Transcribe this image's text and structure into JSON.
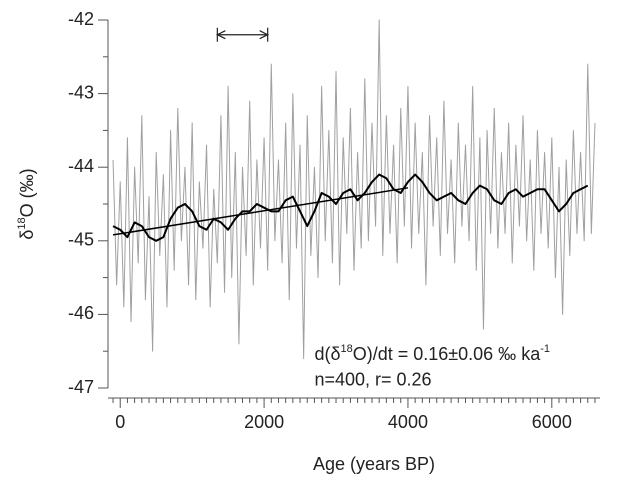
{
  "chart_data": {
    "type": "line",
    "x_label": "Age (years BP)",
    "y_label_parts": [
      {
        "text": "δ"
      },
      {
        "text": "18",
        "sup": true
      },
      {
        "text": "O (‰)"
      }
    ],
    "xlim": [
      -170,
      6670
    ],
    "ylim": [
      -47,
      -42
    ],
    "xticks": [
      0,
      2000,
      4000,
      6000
    ],
    "xminorticks": [
      -100,
      100,
      200,
      300,
      400,
      500,
      600,
      700,
      800,
      900,
      1000,
      1100,
      1200,
      1300,
      1400,
      1500,
      1600,
      1700,
      1800,
      1900,
      2100,
      2200,
      2300,
      2400,
      2500,
      2600,
      2700,
      2800,
      2900,
      3000,
      3100,
      3200,
      3300,
      3400,
      3500,
      3600,
      3700,
      3800,
      3900,
      4100,
      4200,
      4300,
      4400,
      4500,
      4600,
      4700,
      4800,
      4900,
      5000,
      5100,
      5200,
      5300,
      5400,
      5500,
      5600,
      5700,
      5800,
      5900,
      6100,
      6200,
      6300,
      6400,
      6500,
      6600
    ],
    "yticks": [
      -47,
      -46,
      -45,
      -44,
      -43,
      -42
    ],
    "yminorticks": [
      -46.5,
      -45.5,
      -44.5,
      -43.5,
      -42.5
    ],
    "series": [
      {
        "name": "raw",
        "color": "#a0a0a0",
        "width": 1,
        "x": [
          -100,
          -50,
          0,
          50,
          100,
          150,
          200,
          250,
          300,
          350,
          400,
          450,
          500,
          550,
          600,
          650,
          700,
          750,
          800,
          850,
          900,
          950,
          1000,
          1050,
          1100,
          1150,
          1200,
          1250,
          1300,
          1350,
          1400,
          1450,
          1500,
          1550,
          1600,
          1650,
          1700,
          1750,
          1800,
          1850,
          1900,
          1950,
          2000,
          2050,
          2100,
          2150,
          2200,
          2250,
          2300,
          2350,
          2400,
          2450,
          2500,
          2550,
          2600,
          2650,
          2700,
          2750,
          2800,
          2850,
          2900,
          2950,
          3000,
          3050,
          3100,
          3150,
          3200,
          3250,
          3300,
          3350,
          3400,
          3450,
          3500,
          3550,
          3600,
          3650,
          3700,
          3750,
          3800,
          3850,
          3900,
          3950,
          4000,
          4050,
          4100,
          4150,
          4200,
          4250,
          4300,
          4350,
          4400,
          4450,
          4500,
          4550,
          4600,
          4650,
          4700,
          4750,
          4800,
          4850,
          4900,
          4950,
          5000,
          5050,
          5100,
          5150,
          5200,
          5250,
          5300,
          5350,
          5400,
          5450,
          5500,
          5550,
          5600,
          5650,
          5700,
          5750,
          5800,
          5850,
          5900,
          5950,
          6000,
          6050,
          6100,
          6150,
          6200,
          6250,
          6300,
          6350,
          6400,
          6450,
          6500,
          6550,
          6600
        ],
        "values": [
          -43.9,
          -45.6,
          -44.2,
          -45.9,
          -43.6,
          -46.1,
          -44.0,
          -45.3,
          -43.3,
          -45.8,
          -44.4,
          -46.5,
          -43.8,
          -45.2,
          -44.1,
          -45.9,
          -43.5,
          -45.4,
          -43.2,
          -45.0,
          -44.0,
          -45.6,
          -43.4,
          -45.8,
          -44.2,
          -45.1,
          -43.7,
          -45.9,
          -44.3,
          -45.3,
          -43.3,
          -45.7,
          -42.9,
          -45.5,
          -43.8,
          -46.4,
          -44.0,
          -45.2,
          -43.1,
          -45.6,
          -43.9,
          -45.1,
          -43.6,
          -45.4,
          -42.6,
          -45.0,
          -43.9,
          -45.3,
          -43.4,
          -45.8,
          -43.0,
          -45.1,
          -43.7,
          -46.6,
          -43.3,
          -45.2,
          -44.0,
          -45.5,
          -42.9,
          -45.0,
          -43.5,
          -45.3,
          -42.7,
          -45.6,
          -43.6,
          -44.9,
          -43.2,
          -45.4,
          -43.8,
          -45.1,
          -42.8,
          -45.0,
          -43.4,
          -44.8,
          -42.0,
          -45.2,
          -43.3,
          -44.9,
          -43.7,
          -45.3,
          -43.2,
          -44.8,
          -42.9,
          -45.1,
          -43.4,
          -44.9,
          -43.8,
          -45.6,
          -43.3,
          -44.8,
          -43.6,
          -45.2,
          -43.1,
          -44.9,
          -43.9,
          -45.3,
          -43.4,
          -44.8,
          -43.7,
          -45.0,
          -42.9,
          -45.4,
          -43.6,
          -46.2,
          -43.5,
          -44.9,
          -43.2,
          -45.1,
          -43.8,
          -44.9,
          -43.4,
          -45.3,
          -43.7,
          -44.8,
          -43.3,
          -45.0,
          -43.9,
          -45.4,
          -43.5,
          -44.9,
          -43.8,
          -45.1,
          -43.6,
          -45.5,
          -44.0,
          -46.0,
          -43.9,
          -45.2,
          -43.5,
          -44.9,
          -43.8,
          -45.0,
          -42.6,
          -44.9,
          -43.4
        ]
      },
      {
        "name": "smoothed",
        "color": "#000000",
        "width": 2,
        "x": [
          -100,
          0,
          100,
          200,
          300,
          400,
          500,
          600,
          700,
          800,
          900,
          1000,
          1100,
          1200,
          1300,
          1400,
          1500,
          1600,
          1700,
          1800,
          1900,
          2000,
          2100,
          2200,
          2300,
          2400,
          2500,
          2600,
          2700,
          2800,
          2900,
          3000,
          3100,
          3200,
          3300,
          3400,
          3500,
          3600,
          3700,
          3800,
          3900,
          4000,
          4100,
          4200,
          4300,
          4400,
          4500,
          4600,
          4700,
          4800,
          4900,
          5000,
          5100,
          5200,
          5300,
          5400,
          5500,
          5600,
          5700,
          5800,
          5900,
          6000,
          6100,
          6200,
          6300,
          6400,
          6500
        ],
        "values": [
          -44.8,
          -44.85,
          -44.95,
          -44.75,
          -44.8,
          -44.95,
          -45.0,
          -44.95,
          -44.7,
          -44.55,
          -44.5,
          -44.6,
          -44.8,
          -44.85,
          -44.7,
          -44.75,
          -44.85,
          -44.7,
          -44.6,
          -44.6,
          -44.5,
          -44.55,
          -44.6,
          -44.6,
          -44.45,
          -44.4,
          -44.6,
          -44.8,
          -44.6,
          -44.35,
          -44.4,
          -44.5,
          -44.35,
          -44.3,
          -44.45,
          -44.35,
          -44.2,
          -44.1,
          -44.15,
          -44.3,
          -44.35,
          -44.2,
          -44.1,
          -44.2,
          -44.35,
          -44.45,
          -44.4,
          -44.35,
          -44.45,
          -44.5,
          -44.35,
          -44.25,
          -44.3,
          -44.45,
          -44.5,
          -44.35,
          -44.3,
          -44.4,
          -44.35,
          -44.3,
          -44.3,
          -44.45,
          -44.6,
          -44.5,
          -44.35,
          -44.3,
          -44.25
        ]
      },
      {
        "name": "trend",
        "color": "#000000",
        "width": 1.5,
        "x": [
          -100,
          4000
        ],
        "values": [
          -44.92,
          -44.28
        ]
      }
    ],
    "scale_bar": {
      "x": [
        1350,
        2050
      ],
      "y": -42.2
    },
    "annotation": [
      {
        "x": 2700,
        "y": -46.55,
        "parts": [
          {
            "text": "d(δ"
          },
          {
            "text": "18",
            "sup": true
          },
          {
            "text": "O)/dt = 0.16±0.06 ‰ ka"
          },
          {
            "text": "-1",
            "sup": true
          }
        ]
      },
      {
        "x": 2700,
        "y": -46.9,
        "parts": [
          {
            "text": "n=400, r= 0.26"
          }
        ]
      }
    ]
  }
}
